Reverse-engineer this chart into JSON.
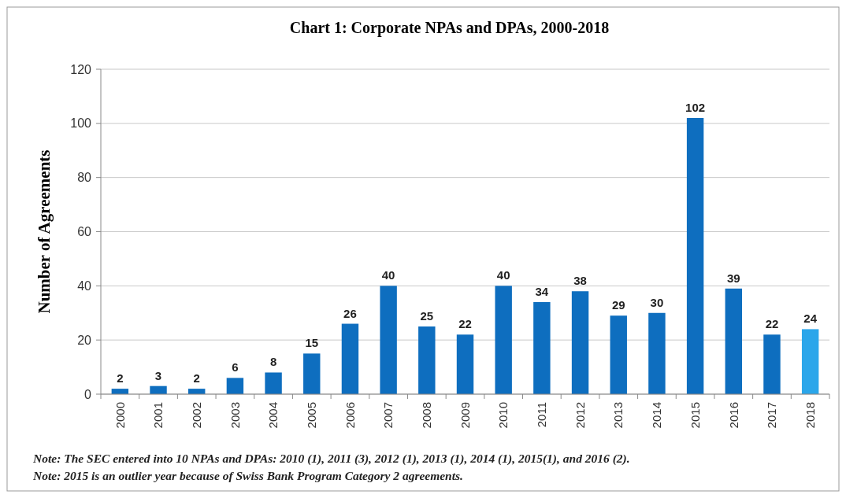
{
  "chart_data": {
    "type": "bar",
    "title": "Chart 1: Corporate NPAs and DPAs, 2000-2018",
    "ylabel": "Number of Agreements",
    "categories": [
      "2000",
      "2001",
      "2002",
      "2003",
      "2004",
      "2005",
      "2006",
      "2007",
      "2008",
      "2009",
      "2010",
      "2011",
      "2012",
      "2013",
      "2014",
      "2015",
      "2016",
      "2017",
      "2018"
    ],
    "values": [
      2,
      3,
      2,
      6,
      8,
      15,
      26,
      40,
      25,
      22,
      40,
      34,
      38,
      29,
      30,
      102,
      39,
      22,
      24
    ],
    "colors": [
      "#0e6ebf",
      "#0e6ebf",
      "#0e6ebf",
      "#0e6ebf",
      "#0e6ebf",
      "#0e6ebf",
      "#0e6ebf",
      "#0e6ebf",
      "#0e6ebf",
      "#0e6ebf",
      "#0e6ebf",
      "#0e6ebf",
      "#0e6ebf",
      "#0e6ebf",
      "#0e6ebf",
      "#0e6ebf",
      "#0e6ebf",
      "#0e6ebf",
      "#2ba6ea"
    ],
    "ylim": [
      0,
      120
    ],
    "yticks": [
      0,
      20,
      40,
      60,
      80,
      100,
      120
    ],
    "grid": "y",
    "data_labels": true,
    "annotations": [
      "Note: The SEC entered into 10 NPAs and DPAs: 2010 (1), 2011 (3), 2012 (1), 2013 (1), 2014 (1), 2015(1), and 2016 (2).",
      "Note: 2015 is an outlier year because of Swiss Bank Program Category 2 agreements."
    ]
  }
}
